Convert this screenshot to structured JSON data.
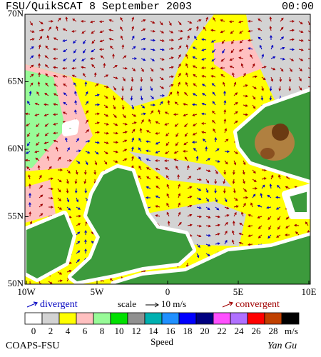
{
  "header": {
    "title": "FSU/QuikSCAT  8 September 2003",
    "time": "00:00"
  },
  "map": {
    "lat_labels": [
      "70N",
      "65N",
      "60N",
      "55N",
      "50N"
    ],
    "lon_labels": [
      "10W",
      "5W",
      "0",
      "5E",
      "10E"
    ]
  },
  "legend": {
    "divergent": "divergent",
    "scale": "scale",
    "scale_value": "10 m/s",
    "convergent": "convergent",
    "divergent_color": "#0000c0",
    "convergent_color": "#a00000"
  },
  "colorbar": {
    "labels": [
      0,
      2,
      4,
      6,
      8,
      10,
      12,
      14,
      16,
      18,
      20,
      22,
      24,
      26,
      28
    ],
    "colors": [
      "#ffffff",
      "#d3d3d3",
      "#ffff00",
      "#ffc0c0",
      "#98fb98",
      "#00e000",
      "#909090",
      "#00b0b0",
      "#2090ff",
      "#0000ff",
      "#000080",
      "#ff50ff",
      "#b070ff",
      "#ff0000",
      "#c04000",
      "#000000"
    ],
    "unit": "m/s",
    "title": "Speed"
  },
  "footer": {
    "credit": "COAPS-FSU",
    "signature": "Yan Gu"
  }
}
